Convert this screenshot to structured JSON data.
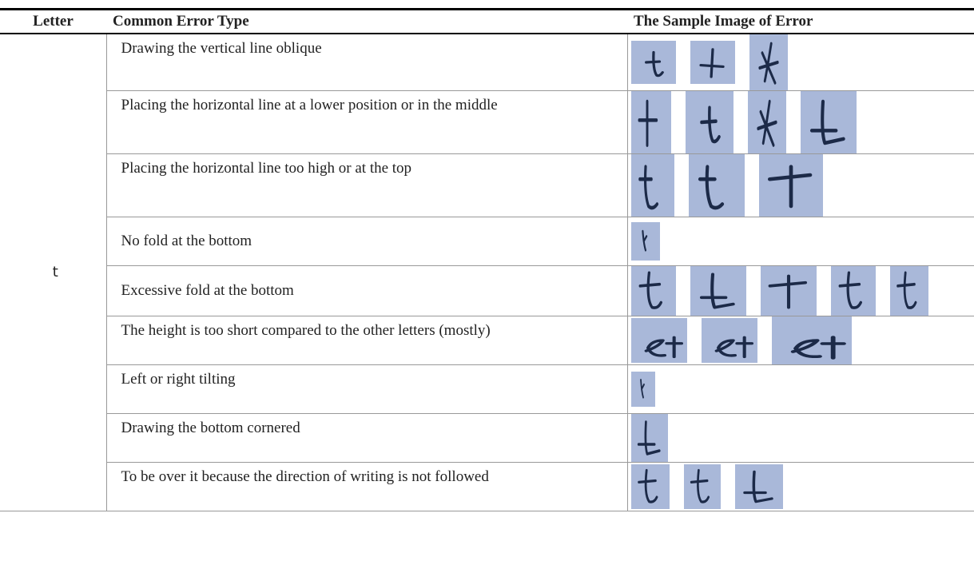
{
  "table": {
    "header": [
      "Letter",
      "Common Error Type",
      "The Sample Image of Error"
    ],
    "letter": "t",
    "errors": [
      "Drawing the vertical line oblique",
      "Placing the horizontal line at a lower position or in the middle",
      "Placing the horizontal line too high or at the top",
      "No fold at the bottom",
      "Excessive fold at the bottom",
      "The height is too short compared to the other letters (mostly)",
      "Left or right tilting",
      "Drawing the bottom cornered",
      "To be over it because the direction of writing is not followed"
    ]
  }
}
